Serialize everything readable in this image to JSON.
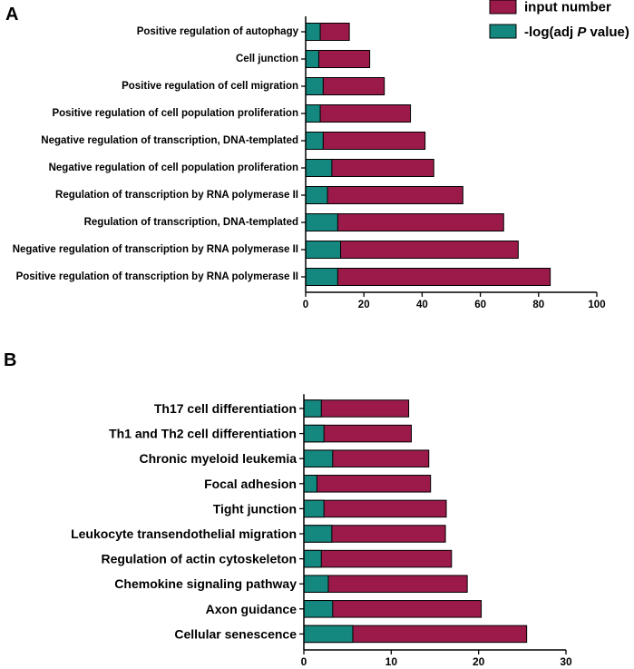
{
  "chart_data": [
    {
      "panel_label": "A",
      "type": "bar",
      "orientation": "horizontal",
      "stacked": true,
      "categories": [
        "Positive regulation of autophagy",
        "Cell junction",
        "Positive regulation of cell migration",
        "Positive regulation of cell population proliferation",
        "Negative regulation of transcription, DNA-templated",
        "Negative regulation of cell population proliferation",
        "Regulation of transcription by RNA polymerase II",
        "Regulation of transcription, DNA-templated",
        "Negative regulation of transcription by RNA polymerase II",
        "Positive regulation of transcription by RNA polymerase II"
      ],
      "series": [
        {
          "name": "-log(adj P value)",
          "values": [
            5,
            4.5,
            6,
            5,
            6,
            9,
            7.5,
            11,
            12,
            11
          ]
        },
        {
          "name": "input number",
          "values": [
            15,
            22,
            27,
            36,
            41,
            44,
            54,
            68,
            73,
            84
          ]
        }
      ],
      "xlim": [
        0,
        100
      ],
      "xticks": [
        0,
        20,
        40,
        60,
        80,
        100
      ]
    },
    {
      "panel_label": "B",
      "type": "bar",
      "orientation": "horizontal",
      "stacked": true,
      "categories": [
        "Th17 cell differentiation",
        "Th1 and Th2 cell differentiation",
        "Chronic myeloid leukemia",
        "Focal adhesion",
        "Tight junction",
        "Leukocyte transendothelial migration",
        "Regulation of actin cytoskeleton",
        "Chemokine signaling pathway",
        "Axon guidance",
        "Cellular senescence"
      ],
      "series": [
        {
          "name": "-log(adj P value)",
          "values": [
            2,
            2.3,
            3.3,
            1.5,
            2.3,
            3.2,
            2,
            2.8,
            3.3,
            5.6
          ]
        },
        {
          "name": "input number",
          "values": [
            12,
            12.3,
            14.3,
            14.5,
            16.3,
            16.2,
            16.9,
            18.7,
            20.3,
            25.5
          ]
        }
      ],
      "xlim": [
        0,
        30
      ],
      "xticks": [
        0,
        10,
        20,
        30
      ]
    }
  ],
  "legend": {
    "position": "top-right",
    "items": [
      {
        "label": "input number",
        "color": "#9b1a4a"
      },
      {
        "label_prefix": "-log(adj ",
        "label_italic": "P",
        "label_suffix": " value)",
        "color": "#14877f"
      }
    ]
  },
  "colors": {
    "input_number": "#9b1a4a",
    "neglog_p": "#14877f",
    "outline": "#000000"
  }
}
